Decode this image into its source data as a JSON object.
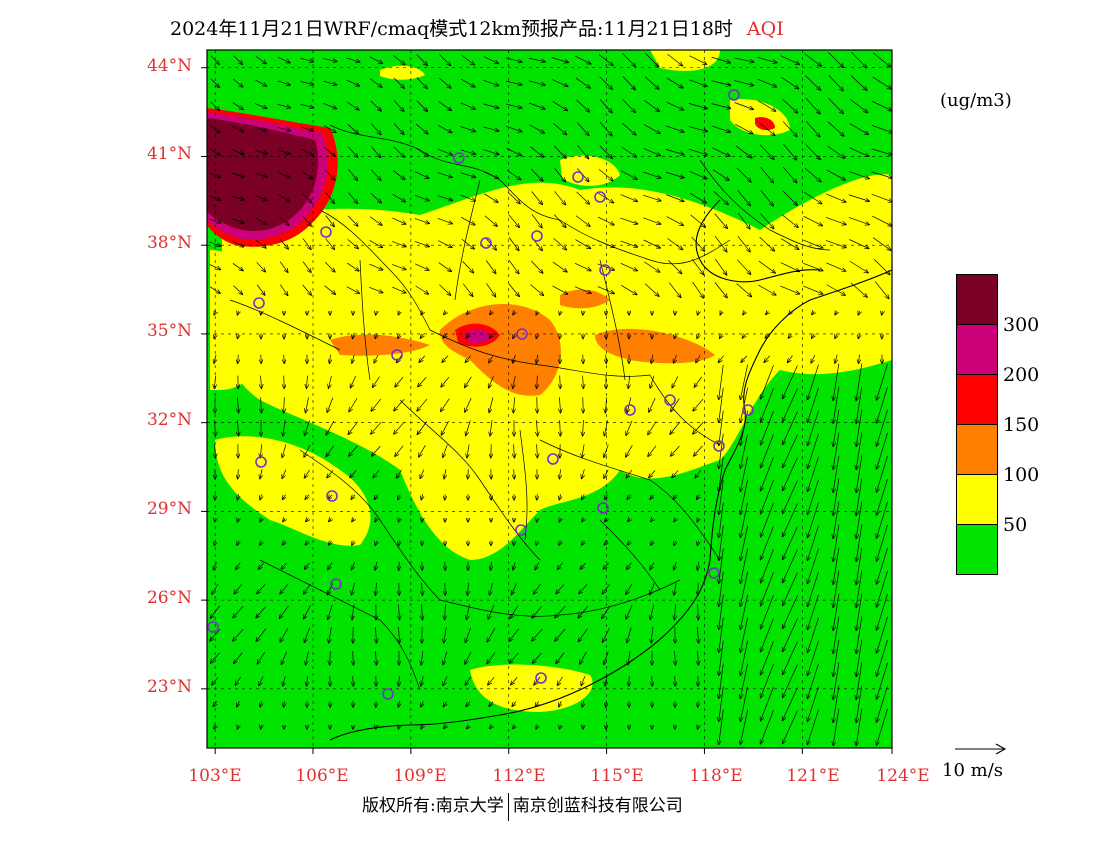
{
  "title": {
    "main": "2024年11月21日WRF/cmaq模式12km预报产品:11月21日18时",
    "variable": "AQI"
  },
  "axes": {
    "lat_labels": [
      "44°N",
      "41°N",
      "38°N",
      "35°N",
      "32°N",
      "29°N",
      "26°N",
      "23°N"
    ],
    "lon_labels": [
      "103°E",
      "106°E",
      "109°E",
      "112°E",
      "115°E",
      "118°E",
      "121°E",
      "124°E"
    ]
  },
  "legend": {
    "unit": "(ug/m3)",
    "levels": [
      {
        "label": "300",
        "color": "#7a0025"
      },
      {
        "label": "200",
        "color": "#cc0077"
      },
      {
        "label": "150",
        "color": "#ff0000"
      },
      {
        "label": "100",
        "color": "#ff7f00"
      },
      {
        "label": "50",
        "color": "#ffff00"
      },
      {
        "label": "",
        "color": "#00e400"
      }
    ]
  },
  "wind_reference": {
    "label": "10 m/s"
  },
  "footer": {
    "left": "版权所有:南京大学",
    "right": "南京创蓝科技有限公司"
  },
  "map_extent": {
    "lon_min": 102.75,
    "lon_max": 123.75,
    "lat_min": 21.0,
    "lat_max": 44.6
  }
}
